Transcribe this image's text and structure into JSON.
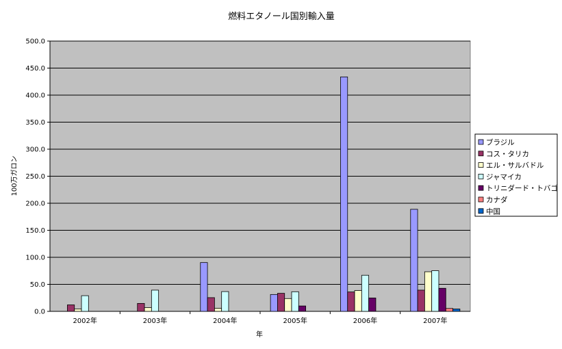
{
  "chart_data": {
    "type": "bar",
    "title": "燃料エタノール国別輸入量",
    "xlabel": "年",
    "ylabel": "100万ガロン",
    "categories": [
      "2002年",
      "2003年",
      "2004年",
      "2005年",
      "2006年",
      "2007年"
    ],
    "ylim": [
      0,
      500
    ],
    "yticks": [
      "0.0",
      "50.0",
      "100.0",
      "150.0",
      "200.0",
      "250.0",
      "300.0",
      "350.0",
      "400.0",
      "450.0",
      "500.0"
    ],
    "grid": true,
    "legend_position": "right",
    "series": [
      {
        "name": "ブラジル",
        "color": "#9999ff",
        "values": [
          0,
          0,
          90.3,
          31.2,
          433.7,
          188.8
        ]
      },
      {
        "name": "コス・タリカ",
        "color": "#993366",
        "values": [
          12.0,
          14.7,
          25.4,
          33.4,
          35.9,
          39.3
        ]
      },
      {
        "name": "エル・サルバドル",
        "color": "#ffffcc",
        "values": [
          4.5,
          6.9,
          5.7,
          23.7,
          38.5,
          73.3
        ]
      },
      {
        "name": "ジャマイカ",
        "color": "#ccffff",
        "values": [
          29.0,
          39.3,
          36.6,
          36.3,
          66.8,
          75.2
        ]
      },
      {
        "name": "トリニダード・トバゴ",
        "color": "#660066",
        "values": [
          0,
          0,
          0,
          10.0,
          24.8,
          42.7
        ]
      },
      {
        "name": "カナダ",
        "color": "#ff8080",
        "values": [
          0,
          0,
          0,
          0,
          0,
          5.4
        ]
      },
      {
        "name": "中国",
        "color": "#0066cc",
        "values": [
          0,
          0,
          0,
          0,
          0,
          4.4
        ]
      }
    ]
  }
}
